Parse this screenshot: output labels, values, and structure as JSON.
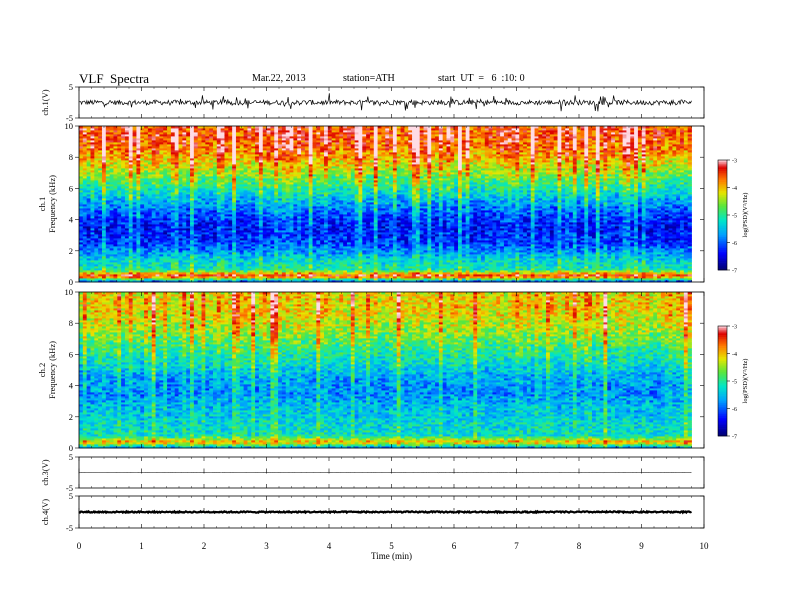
{
  "header": {
    "title": "VLF  Spectra",
    "date": "Mar.22, 2013",
    "station": "station=ATH",
    "start": "start  UT  =   6  :10: 0"
  },
  "chart_data": [
    {
      "type": "line",
      "panel": "ch1-waveform",
      "ylabel": "ch.1(V)",
      "ylim": [
        -5,
        5
      ],
      "y_ticks": [
        "5",
        "-5"
      ],
      "xlim": [
        0,
        10
      ],
      "data_end": 9.8,
      "level": 0,
      "noise_amplitude": 0.8,
      "color": "#000000"
    },
    {
      "type": "heatmap",
      "panel": "ch1-spectrogram",
      "ylabel": "ch.1\nFrequency  (kHz)",
      "ylabel_lines": [
        "ch.1",
        "Frequency  (kHz)"
      ],
      "ylim": [
        0,
        10
      ],
      "y_ticks": [
        "0",
        "2",
        "4",
        "6",
        "8",
        "10"
      ],
      "xlim": [
        0,
        10
      ],
      "data_end": 9.8,
      "frequency_profile_log_psd": [
        {
          "f": 0.0,
          "v": -6.5
        },
        {
          "f": 0.4,
          "v": -3.4
        },
        {
          "f": 0.8,
          "v": -5.2
        },
        {
          "f": 1.5,
          "v": -5.5
        },
        {
          "f": 2.5,
          "v": -6.3
        },
        {
          "f": 3.5,
          "v": -6.5
        },
        {
          "f": 4.5,
          "v": -6.2
        },
        {
          "f": 5.5,
          "v": -5.6
        },
        {
          "f": 6.5,
          "v": -5.0
        },
        {
          "f": 7.5,
          "v": -4.4
        },
        {
          "f": 8.5,
          "v": -3.9
        },
        {
          "f": 9.5,
          "v": -3.7
        },
        {
          "f": 10.0,
          "v": -3.8
        }
      ],
      "colorbar": {
        "label": "log(PSD)(V²/Hz)",
        "range": [
          -7,
          -3
        ],
        "ticks": [
          "-3",
          "-4",
          "-5",
          "-6",
          "-7"
        ]
      }
    },
    {
      "type": "heatmap",
      "panel": "ch2-spectrogram",
      "ylabel": "ch.2\nFrequency  (kHz)",
      "ylabel_lines": [
        "ch.2",
        "Frequency  (kHz)"
      ],
      "ylim": [
        0,
        10
      ],
      "y_ticks": [
        "0",
        "2",
        "4",
        "6",
        "8",
        "10"
      ],
      "xlim": [
        0,
        10
      ],
      "data_end": 9.8,
      "frequency_profile_log_psd": [
        {
          "f": 0.0,
          "v": -6.0
        },
        {
          "f": 0.4,
          "v": -4.0
        },
        {
          "f": 0.8,
          "v": -5.3
        },
        {
          "f": 1.5,
          "v": -5.4
        },
        {
          "f": 2.5,
          "v": -5.6
        },
        {
          "f": 3.5,
          "v": -5.9
        },
        {
          "f": 4.5,
          "v": -5.8
        },
        {
          "f": 5.5,
          "v": -5.4
        },
        {
          "f": 6.5,
          "v": -5.1
        },
        {
          "f": 7.5,
          "v": -4.7
        },
        {
          "f": 8.5,
          "v": -4.4
        },
        {
          "f": 9.5,
          "v": -4.3
        },
        {
          "f": 10.0,
          "v": -4.4
        }
      ],
      "colorbar": {
        "label": "log(PSD)(V²/Hz)",
        "range": [
          -7,
          -3
        ],
        "ticks": [
          "-3",
          "-4",
          "-5",
          "-6",
          "-7"
        ]
      }
    },
    {
      "type": "line",
      "panel": "ch3-waveform",
      "ylabel": "ch.3(V)",
      "ylim": [
        -5,
        5
      ],
      "y_ticks": [
        "5",
        "-5"
      ],
      "xlim": [
        0,
        10
      ],
      "data_end": 9.8,
      "level": 0,
      "noise_amplitude": 0.05,
      "color": "#555555"
    },
    {
      "type": "line",
      "panel": "ch4-waveform",
      "ylabel": "ch.4(V)",
      "ylim": [
        -5,
        5
      ],
      "y_ticks": [
        "5",
        "-5"
      ],
      "xlim": [
        0,
        10
      ],
      "data_end": 9.8,
      "level": 0,
      "noise_amplitude": 0.4,
      "color": "#000000"
    }
  ],
  "x_axis": {
    "label": "Time  (min)",
    "ticks": [
      "0",
      "1",
      "2",
      "3",
      "4",
      "5",
      "6",
      "7",
      "8",
      "9",
      "10"
    ]
  }
}
